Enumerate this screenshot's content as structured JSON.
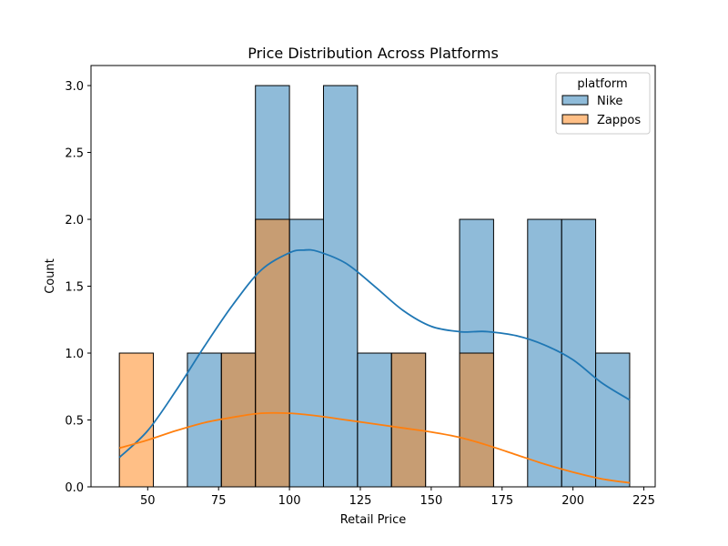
{
  "chart_data": {
    "type": "bar",
    "title": "Price Distribution Across Platforms",
    "xlabel": "Retail Price",
    "ylabel": "Count",
    "xlim": [
      30,
      229
    ],
    "ylim": [
      0,
      3.15
    ],
    "xticks": [
      50,
      75,
      100,
      125,
      150,
      175,
      200,
      225
    ],
    "yticks": [
      0.0,
      0.5,
      1.0,
      1.5,
      2.0,
      2.5,
      3.0
    ],
    "bins": [
      40,
      52,
      64,
      76,
      88,
      100,
      112,
      124,
      136,
      148,
      160,
      172,
      184,
      196,
      208,
      220
    ],
    "legend": {
      "title": "platform",
      "position": "top-right"
    },
    "series": [
      {
        "name": "Nike",
        "color": "#1f77b4",
        "counts": [
          0,
          0,
          1,
          1,
          3,
          2,
          3,
          1,
          1,
          0,
          2,
          0,
          2,
          2,
          1
        ],
        "kde": {
          "x": [
            40,
            50,
            60,
            70,
            80,
            90,
            100,
            105,
            110,
            120,
            130,
            140,
            150,
            160,
            165,
            170,
            180,
            190,
            200,
            210,
            220
          ],
          "y": [
            0.22,
            0.42,
            0.72,
            1.05,
            1.36,
            1.62,
            1.75,
            1.77,
            1.76,
            1.67,
            1.5,
            1.32,
            1.2,
            1.16,
            1.16,
            1.16,
            1.13,
            1.06,
            0.95,
            0.78,
            0.65
          ]
        }
      },
      {
        "name": "Zappos",
        "color": "#ff7f0e",
        "counts": [
          1,
          0,
          0,
          1,
          2,
          0,
          0,
          0,
          1,
          0,
          1,
          0,
          0,
          0,
          0
        ],
        "kde": {
          "x": [
            40,
            50,
            60,
            70,
            80,
            90,
            100,
            110,
            120,
            130,
            140,
            150,
            160,
            170,
            180,
            190,
            200,
            210,
            220
          ],
          "y": [
            0.29,
            0.35,
            0.42,
            0.48,
            0.52,
            0.55,
            0.55,
            0.53,
            0.5,
            0.47,
            0.44,
            0.41,
            0.37,
            0.31,
            0.24,
            0.17,
            0.11,
            0.06,
            0.03
          ]
        }
      }
    ]
  }
}
